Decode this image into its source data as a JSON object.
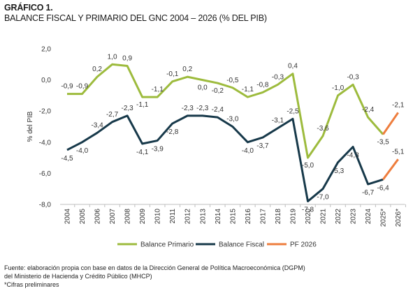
{
  "header": {
    "title": "GRÁFICO 1.",
    "subtitle": "BALANCE FISCAL Y PRIMARIO DEL GNC  2004 – 2026 (% DEL PIB)"
  },
  "footer": {
    "source": "Fuente: elaboración propia con base en datos de la Dirección General de Política Macroeconómica (DGPM)",
    "source2": "del Ministerio de Hacienda y Crédito Público (MHCP)",
    "note": "*Cifras preliminares"
  },
  "chart_data": {
    "type": "line",
    "x": [
      "2004",
      "2005",
      "2006",
      "2007",
      "2008",
      "2009",
      "2010",
      "2011",
      "2012",
      "2013",
      "2014",
      "2015",
      "2016",
      "2017",
      "2018",
      "2019",
      "2020",
      "2021",
      "2022",
      "2023",
      "2024",
      "2025*",
      "2026*"
    ],
    "ylabel": "% del PIB",
    "ylim": [
      -8.0,
      2.0
    ],
    "yticks": [
      2.0,
      0.0,
      -2.0,
      -4.0,
      -6.0,
      -8.0
    ],
    "ytick_labels": [
      "2,0",
      "0,0",
      "-2,0",
      "-4,0",
      "-6,0",
      "-8,0"
    ],
    "grid": false,
    "legend_position": "bottom",
    "series": [
      {
        "name": "Balance Primario",
        "color": "#9dbb3d",
        "values": [
          -0.9,
          -0.9,
          0.2,
          1.0,
          0.9,
          -1.1,
          -1.1,
          -0.1,
          0.2,
          0.0,
          -0.2,
          -0.5,
          -1.1,
          -0.8,
          -0.3,
          0.4,
          -5.0,
          -3.6,
          -1.0,
          -0.3,
          -2.4,
          -3.5,
          null
        ],
        "labels": [
          "-0,9",
          "-0,9",
          "0,2",
          "1,0",
          "0,9",
          "-1,1",
          "-1,1",
          "-0,1",
          "0,2",
          "0,0",
          "-0,2",
          "-0,5",
          "-1,1",
          "-0,8",
          "-0,3",
          "0,4",
          "-5,0",
          "-3,6",
          "-1,0",
          "-0,3",
          "-2,4",
          "-3,5",
          ""
        ]
      },
      {
        "name": "Balance Fiscal",
        "color": "#17394a",
        "values": [
          -4.5,
          -4.0,
          -3.4,
          -2.7,
          -2.3,
          -4.1,
          -3.9,
          -2.8,
          -2.3,
          -2.3,
          -2.4,
          -3.0,
          -4.0,
          -3.7,
          -3.1,
          -2.5,
          -7.8,
          -7.0,
          -5.3,
          -4.3,
          -6.7,
          -6.4,
          null
        ],
        "labels": [
          "-4,5",
          "-4,0",
          "-3,4",
          "-2,7",
          "-2,3",
          "-4,1",
          "-3,9",
          "-2,8",
          "-2,3",
          "-2,3",
          "-2,4",
          "-3,0",
          "-4,0",
          "-3,7",
          "-3,1",
          "-2,5",
          "-7,8",
          "-7,0",
          "-5,3",
          "-4,3",
          "-6,7",
          "-6,4",
          ""
        ]
      },
      {
        "name": "PF 2026",
        "color": "#ee7d3d",
        "segments": [
          {
            "x": [
              "2025*",
              "2026*"
            ],
            "values": [
              -3.5,
              -2.1
            ],
            "end_label": "-2,1"
          },
          {
            "x": [
              "2025*",
              "2026*"
            ],
            "values": [
              -6.4,
              -5.1
            ],
            "end_label": "-5,1"
          }
        ]
      }
    ]
  }
}
